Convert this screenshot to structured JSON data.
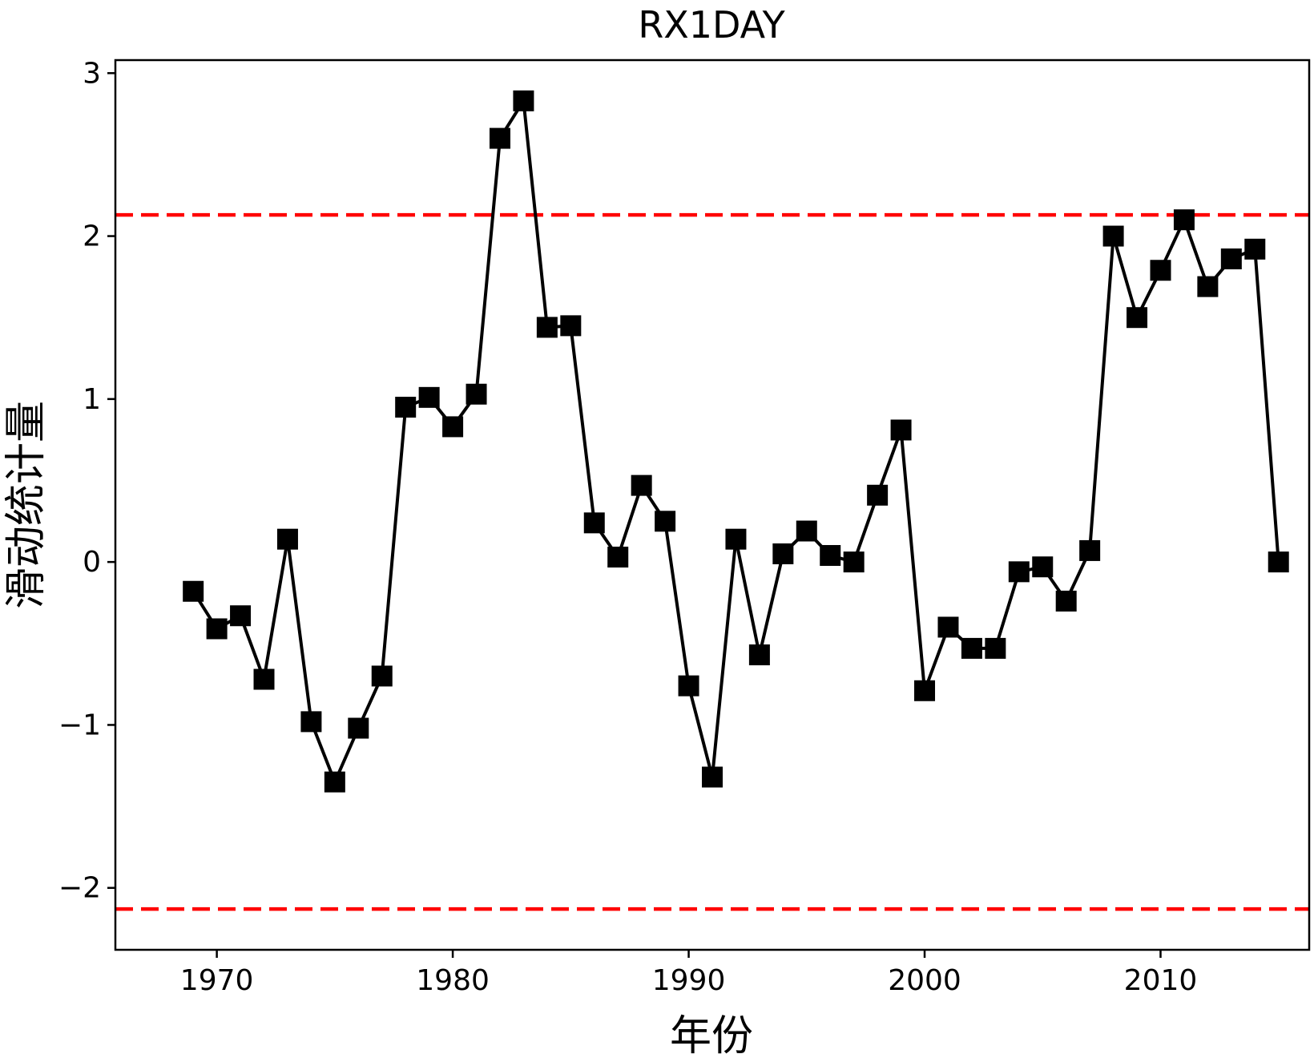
{
  "chart_data": {
    "type": "line",
    "title": "RX1DAY",
    "xlabel": "年份",
    "ylabel": "滑动统计量",
    "xlim": [
      1965.7,
      2016.3
    ],
    "ylim": [
      -2.38,
      3.08
    ],
    "xticks": [
      1970,
      1980,
      1990,
      2000,
      2010
    ],
    "yticks": [
      -2,
      -1,
      0,
      1,
      2,
      3
    ],
    "ytick_labels": [
      "−2",
      "−1",
      "0",
      "1",
      "2",
      "3"
    ],
    "grid": false,
    "series": [
      {
        "color": "#000000",
        "marker": "square",
        "x": [
          1969,
          1970,
          1971,
          1972,
          1973,
          1974,
          1975,
          1976,
          1977,
          1978,
          1979,
          1980,
          1981,
          1982,
          1983,
          1984,
          1985,
          1986,
          1987,
          1988,
          1989,
          1990,
          1991,
          1992,
          1993,
          1994,
          1995,
          1996,
          1997,
          1998,
          1999,
          2000,
          2001,
          2002,
          2003,
          2004,
          2005,
          2006,
          2007,
          2008,
          2009,
          2010,
          2011,
          2012,
          2013,
          2014,
          2015
        ],
        "values": [
          -0.18,
          -0.41,
          -0.33,
          -0.72,
          0.14,
          -0.98,
          -1.35,
          -1.02,
          -0.7,
          0.95,
          1.01,
          0.83,
          1.03,
          2.6,
          2.83,
          1.44,
          1.45,
          0.24,
          0.03,
          0.47,
          0.25,
          -0.76,
          -1.32,
          0.14,
          -0.57,
          0.05,
          0.19,
          0.04,
          0.0,
          0.41,
          0.81,
          -0.79,
          -0.4,
          -0.53,
          -0.53,
          -0.06,
          -0.03,
          -0.24,
          0.07,
          2.0,
          1.5,
          1.79,
          2.1,
          1.69,
          1.86,
          1.92,
          0.0
        ]
      }
    ],
    "reference_lines": [
      {
        "y": 2.13,
        "color": "#ff0000",
        "style": "dashed"
      },
      {
        "y": -2.13,
        "color": "#ff0000",
        "style": "dashed"
      }
    ]
  }
}
